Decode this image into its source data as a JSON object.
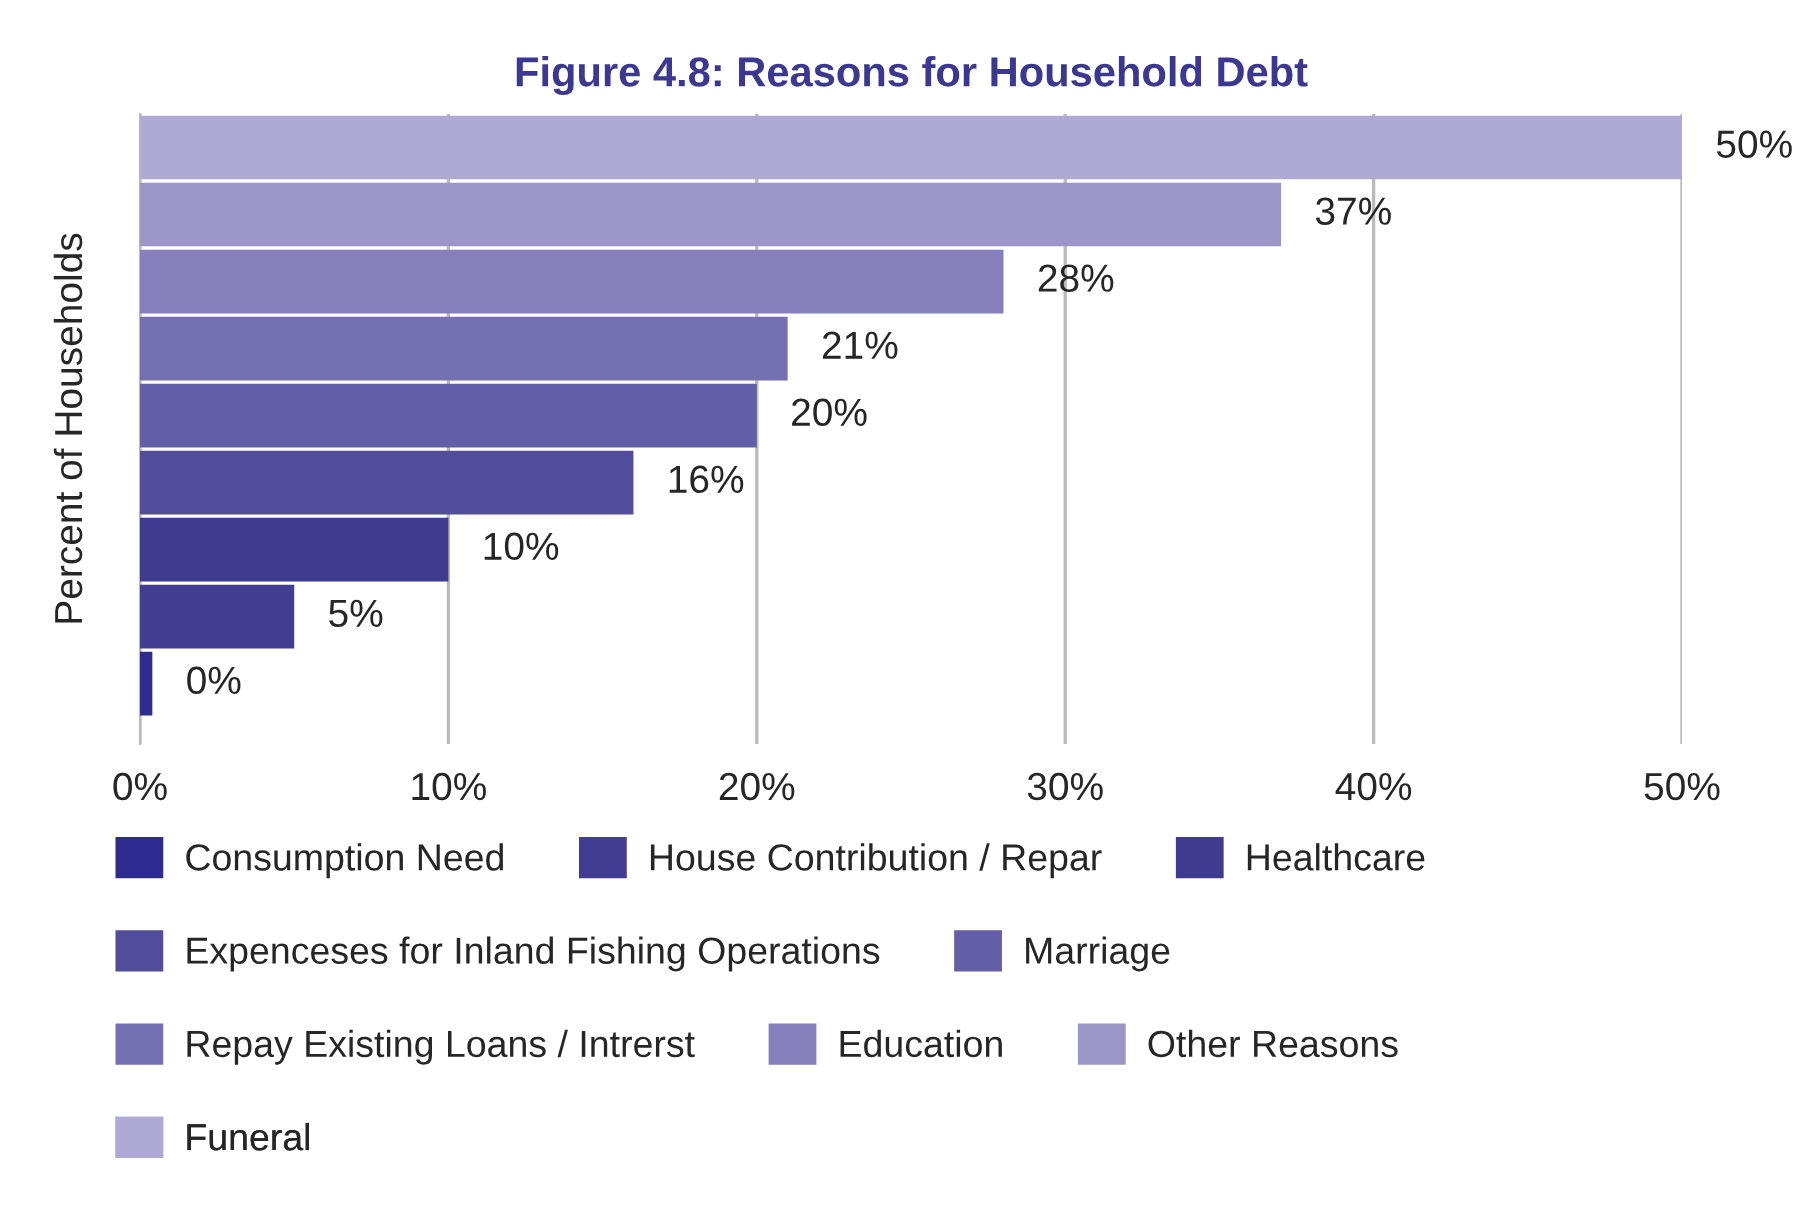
{
  "chart_data": {
    "type": "bar",
    "orientation": "horizontal",
    "title": "Figure 4.8: Reasons for Household Debt",
    "ylabel": "Percent of Households",
    "categories": [
      null,
      null,
      null,
      null,
      null,
      null,
      null,
      null,
      null
    ],
    "series": [
      {
        "name": "Consumption Need",
        "color": "#2e2c8e",
        "values": [
          null,
          null,
          null,
          null,
          null,
          null,
          null,
          null,
          0.4
        ],
        "value_labels": [
          null,
          null,
          null,
          null,
          null,
          null,
          null,
          null,
          "0%"
        ]
      },
      {
        "name": "House Contribution / Repar",
        "color": "#403d93",
        "values": [
          null,
          null,
          null,
          null,
          null,
          null,
          null,
          5,
          null
        ],
        "value_labels": [
          null,
          null,
          null,
          null,
          null,
          null,
          null,
          "5%",
          null
        ]
      },
      {
        "name": "Healthcare",
        "color": "#3e3b90",
        "values": [
          null,
          null,
          null,
          null,
          null,
          null,
          10,
          null,
          null
        ],
        "value_labels": [
          null,
          null,
          null,
          null,
          null,
          null,
          "10%",
          null,
          null
        ]
      },
      {
        "name": "Expenceses for Inland Fishing Operations",
        "color": "#514c9c",
        "values": [
          null,
          null,
          null,
          null,
          null,
          16,
          null,
          null,
          null
        ],
        "value_labels": [
          null,
          null,
          null,
          null,
          null,
          "16%",
          null,
          null,
          null
        ]
      },
      {
        "name": "Marriage",
        "color": "#625ea8",
        "values": [
          null,
          null,
          null,
          null,
          20,
          null,
          null,
          null,
          null
        ],
        "value_labels": [
          null,
          null,
          null,
          null,
          "20%",
          null,
          null,
          null,
          null
        ]
      },
      {
        "name": "Repay Existing Loans / Intrerst",
        "color": "#7570b2",
        "values": [
          null,
          null,
          null,
          21,
          null,
          null,
          null,
          null,
          null
        ],
        "value_labels": [
          null,
          null,
          null,
          "21%",
          null,
          null,
          null,
          null,
          null
        ]
      },
      {
        "name": "Education",
        "color": "#8580bc",
        "values": [
          null,
          null,
          28,
          null,
          null,
          null,
          null,
          null,
          null
        ],
        "value_labels": [
          null,
          null,
          "28%",
          null,
          null,
          null,
          null,
          null,
          null
        ]
      },
      {
        "name": "Other Reasons",
        "color": "#9b95c8",
        "values": [
          null,
          37,
          null,
          null,
          null,
          null,
          null,
          null,
          null
        ],
        "value_labels": [
          null,
          "37%",
          null,
          null,
          null,
          null,
          null,
          null,
          null
        ]
      },
      {
        "name": "Funeral",
        "color": "#afaad5",
        "values": [
          50,
          null,
          null,
          null,
          null,
          null,
          null,
          null,
          null
        ],
        "value_labels": [
          "50%",
          null,
          null,
          null,
          null,
          null,
          null,
          null,
          null
        ]
      }
    ],
    "xlim": [
      0,
      50
    ],
    "xticks": [
      {
        "value": 0,
        "label": "0%"
      },
      {
        "value": 10,
        "label": "10%"
      },
      {
        "value": 20,
        "label": "20%"
      },
      {
        "value": 30,
        "label": "30%"
      },
      {
        "value": 40,
        "label": "40%"
      },
      {
        "value": 50,
        "label": "50%"
      }
    ],
    "grid": "x",
    "legend": "bottom",
    "tick_labels": "x"
  }
}
